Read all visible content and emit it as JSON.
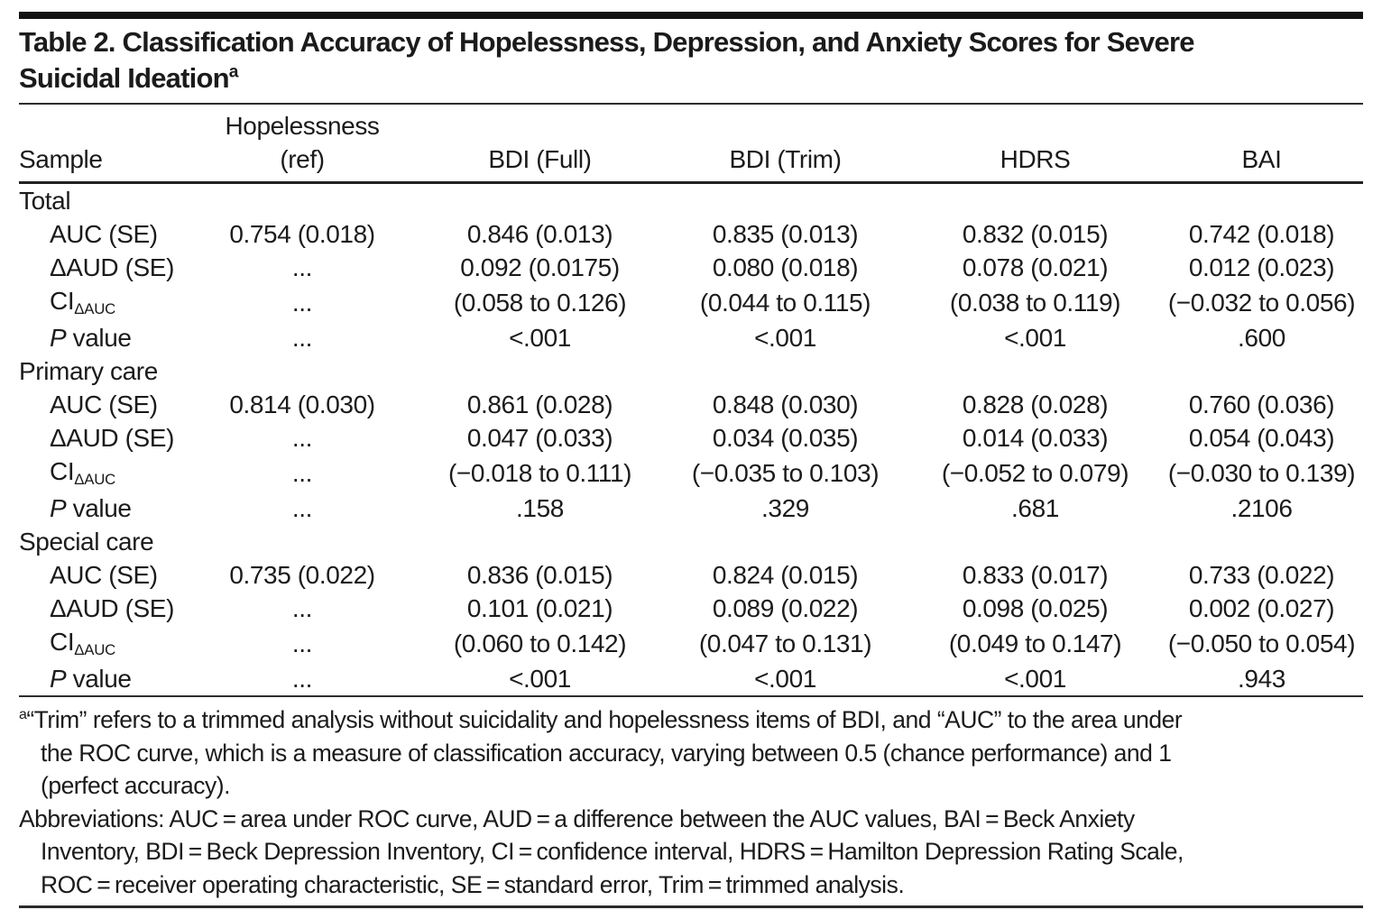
{
  "title": {
    "line1": "Table 2. Classification Accuracy of Hopelessness, Depression, and Anxiety Scores for Severe",
    "line2": "Suicidal Ideation",
    "superscript": "a"
  },
  "header": {
    "sample": "Sample",
    "hopelessness_line1": "Hopelessness",
    "hopelessness_line2": "(ref)",
    "bdi_full": "BDI (Full)",
    "bdi_trim": "BDI (Trim)",
    "hdrs": "HDRS",
    "bai": "BAI"
  },
  "sections": [
    {
      "header": "Total",
      "rows": [
        {
          "label": "AUC (SE)",
          "values": [
            "0.754 (0.018)",
            "0.846 (0.013)",
            "0.835 (0.013)",
            "0.832 (0.015)",
            "0.742 (0.018)"
          ]
        },
        {
          "label": "ΔAUD (SE)",
          "values": [
            "...",
            "0.092 (0.0175)",
            "0.080 (0.018)",
            "0.078 (0.021)",
            "0.012 (0.023)"
          ]
        },
        {
          "label_main": "CI",
          "label_sub": "ΔAUC",
          "values": [
            "...",
            "(0.058 to 0.126)",
            "(0.044 to 0.115)",
            "(0.038 to 0.119)",
            "(−0.032 to 0.056)"
          ]
        },
        {
          "label_italic": "P",
          "label_rest": " value",
          "values": [
            "...",
            "<.001",
            "<.001",
            "<.001",
            ".600"
          ]
        }
      ]
    },
    {
      "header": "Primary care",
      "rows": [
        {
          "label": "AUC (SE)",
          "values": [
            "0.814 (0.030)",
            "0.861 (0.028)",
            "0.848 (0.030)",
            "0.828 (0.028)",
            "0.760 (0.036)"
          ]
        },
        {
          "label": "ΔAUD (SE)",
          "values": [
            "...",
            "0.047 (0.033)",
            "0.034 (0.035)",
            "0.014 (0.033)",
            "0.054 (0.043)"
          ]
        },
        {
          "label_main": "CI",
          "label_sub": "ΔAUC",
          "values": [
            "...",
            "(−0.018 to 0.111)",
            "(−0.035 to 0.103)",
            "(−0.052 to 0.079)",
            "(−0.030 to 0.139)"
          ]
        },
        {
          "label_italic": "P",
          "label_rest": " value",
          "values": [
            "...",
            ".158",
            ".329",
            ".681",
            ".2106"
          ]
        }
      ]
    },
    {
      "header": "Special care",
      "rows": [
        {
          "label": "AUC (SE)",
          "values": [
            "0.735 (0.022)",
            "0.836 (0.015)",
            "0.824 (0.015)",
            "0.833 (0.017)",
            "0.733 (0.022)"
          ]
        },
        {
          "label": "ΔAUD (SE)",
          "values": [
            "...",
            "0.101 (0.021)",
            "0.089 (0.022)",
            "0.098 (0.025)",
            "0.002 (0.027)"
          ]
        },
        {
          "label_main": "CI",
          "label_sub": "ΔAUC",
          "values": [
            "...",
            "(0.060 to 0.142)",
            "(0.047 to 0.131)",
            "(0.049 to 0.147)",
            "(−0.050 to 0.054)"
          ]
        },
        {
          "label_italic": "P",
          "label_rest": " value",
          "values": [
            "...",
            "<.001",
            "<.001",
            "<.001",
            ".943"
          ]
        }
      ]
    }
  ],
  "footnotes": {
    "a_marker": "a",
    "a_lines": [
      "“Trim” refers to a trimmed analysis without suicidality and hopelessness items of BDI, and “AUC” to the area under",
      "the ROC curve, which is a measure of classification accuracy, varying between 0.5 (chance performance) and 1",
      "(perfect accuracy)."
    ],
    "abbrev_lines": [
      "Abbreviations: AUC = area under ROC curve, AUD = a difference between the AUC values, BAI = Beck Anxiety",
      "Inventory, BDI = Beck Depression Inventory, CI = confidence interval, HDRS = Hamilton Depression Rating Scale,",
      "ROC = receiver operating characteristic, SE = standard error, Trim = trimmed analysis."
    ]
  }
}
